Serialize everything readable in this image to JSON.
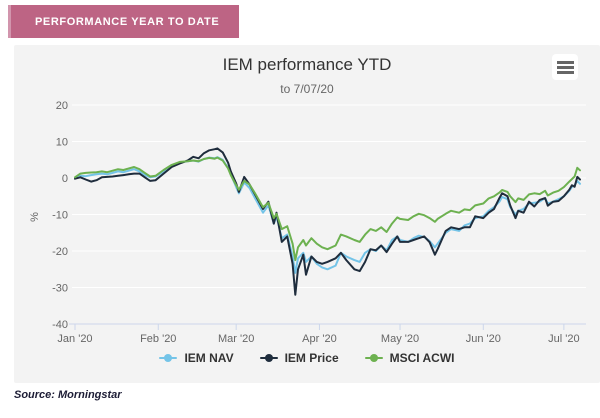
{
  "header": {
    "badge": "PERFORMANCE YEAR TO DATE"
  },
  "footer": {
    "source": "Source: Morningstar"
  },
  "colors": {
    "badge_bg": "#bd6484",
    "card_bg": "#f3f3f3",
    "grid": "#ffffff",
    "axis": "#ccd6eb",
    "tick_text": "#666666",
    "iem_nav": "#74c4e8",
    "iem_price": "#1f2d3d",
    "msci_acwi": "#6db150"
  },
  "export_menu": {
    "icon": "hamburger-icon"
  },
  "chart_data": {
    "type": "line",
    "title": "IEM performance YTD",
    "subtitle": "to 7/07/20",
    "ylabel": "%",
    "ylim": [
      -40,
      20
    ],
    "yticks": [
      20,
      10,
      0,
      -10,
      -20,
      -30,
      -40
    ],
    "grid": true,
    "legend_position": "bottom",
    "x_unit": "day-of-year 2020 (0 = Jan 1, 188 = Jul 7)",
    "xmax": 188,
    "xticks": [
      {
        "label": "Jan '20",
        "day": 0
      },
      {
        "label": "Feb '20",
        "day": 31
      },
      {
        "label": "Mar '20",
        "day": 60
      },
      {
        "label": "Apr '20",
        "day": 91
      },
      {
        "label": "May '20",
        "day": 121
      },
      {
        "label": "Jun '20",
        "day": 152
      },
      {
        "label": "Jul '20",
        "day": 182
      }
    ],
    "x_days": [
      0,
      2,
      4,
      6,
      8,
      10,
      12,
      14,
      16,
      18,
      20,
      22,
      24,
      26,
      28,
      30,
      33,
      36,
      39,
      42,
      44,
      46,
      48,
      50,
      52,
      53,
      55,
      57,
      58,
      60,
      61,
      63,
      65,
      67,
      70,
      72,
      74,
      75,
      77,
      79,
      81,
      82,
      83,
      85,
      86,
      88,
      90,
      92,
      94,
      97,
      99,
      101,
      104,
      106,
      108,
      110,
      112,
      114,
      116,
      118,
      120,
      121,
      124,
      126,
      128,
      130,
      132,
      134,
      135,
      138,
      140,
      143,
      145,
      147,
      149,
      152,
      154,
      156,
      158,
      159,
      161,
      162,
      164,
      165,
      167,
      169,
      171,
      173,
      175,
      176,
      178,
      180,
      182,
      184,
      185,
      186,
      187,
      188
    ],
    "series": [
      {
        "name": "IEM NAV",
        "color": "#74c4e8",
        "values": [
          0,
          0.6,
          0.5,
          0.8,
          1.0,
          1.2,
          1.0,
          1.4,
          1.8,
          1.6,
          2.0,
          2.4,
          1.8,
          0.8,
          0.2,
          0.4,
          1.8,
          3.2,
          4.2,
          4.6,
          4.8,
          4.5,
          5.2,
          5.6,
          5.4,
          5.7,
          5.0,
          2.8,
          1.0,
          -2.5,
          -4.2,
          -1.2,
          -2.8,
          -5.5,
          -9.5,
          -7.5,
          -12.5,
          -10.5,
          -16.5,
          -15.5,
          -21.5,
          -26.0,
          -22.0,
          -20.5,
          -23.0,
          -21.5,
          -23.5,
          -24.5,
          -25.0,
          -24.0,
          -20.5,
          -21.5,
          -22.5,
          -23.0,
          -20.5,
          -19.5,
          -20.0,
          -18.5,
          -19.8,
          -17.0,
          -16.0,
          -17.0,
          -17.5,
          -16.5,
          -15.8,
          -16.2,
          -17.3,
          -19.0,
          -18.0,
          -15.0,
          -14.0,
          -14.5,
          -13.0,
          -12.5,
          -11.0,
          -10.5,
          -9.0,
          -8.0,
          -6.5,
          -5.2,
          -5.8,
          -8.0,
          -10.0,
          -9.0,
          -8.5,
          -7.0,
          -6.8,
          -6.5,
          -5.5,
          -7.0,
          -6.5,
          -5.8,
          -5.0,
          -3.5,
          -2.5,
          -2.0,
          -0.8,
          -1.6
        ]
      },
      {
        "name": "IEM Price",
        "color": "#1f2d3d",
        "values": [
          -0.2,
          0.2,
          -0.4,
          -1.0,
          -0.6,
          0.2,
          0.3,
          0.4,
          0.6,
          0.8,
          1.0,
          1.2,
          1.2,
          0.2,
          -0.8,
          -0.6,
          1.2,
          3.0,
          4.0,
          4.8,
          5.8,
          5.4,
          6.8,
          7.6,
          7.9,
          8.1,
          7.0,
          4.2,
          1.8,
          -1.5,
          -3.8,
          0.3,
          -1.8,
          -4.5,
          -8.5,
          -6.5,
          -12.5,
          -9.5,
          -17.5,
          -16.0,
          -23.5,
          -32.0,
          -25.0,
          -21.0,
          -26.5,
          -21.5,
          -23.0,
          -23.5,
          -23.0,
          -22.0,
          -20.5,
          -22.5,
          -25.0,
          -25.5,
          -23.0,
          -19.5,
          -19.8,
          -18.5,
          -20.3,
          -18.0,
          -16.0,
          -17.5,
          -17.5,
          -17.0,
          -16.5,
          -16.0,
          -17.6,
          -21.0,
          -19.5,
          -14.5,
          -13.5,
          -14.0,
          -13.5,
          -13.5,
          -10.5,
          -11.0,
          -9.5,
          -8.5,
          -5.5,
          -4.2,
          -5.0,
          -7.5,
          -11.0,
          -9.0,
          -9.5,
          -6.5,
          -7.8,
          -6.0,
          -5.5,
          -7.6,
          -6.5,
          -6.3,
          -5.0,
          -3.2,
          -2.0,
          -2.4,
          0.3,
          -0.4
        ]
      },
      {
        "name": "MSCI ACWI",
        "color": "#6db150",
        "values": [
          0.2,
          1.2,
          1.4,
          1.5,
          1.6,
          1.8,
          1.6,
          2.0,
          2.4,
          2.2,
          2.6,
          3.0,
          2.4,
          1.4,
          0.4,
          0.6,
          2.2,
          3.6,
          4.4,
          4.6,
          4.8,
          4.6,
          5.2,
          5.5,
          5.3,
          5.6,
          4.8,
          2.6,
          0.8,
          -2.0,
          -3.2,
          -0.8,
          -1.8,
          -4.2,
          -8.0,
          -6.8,
          -11.0,
          -9.8,
          -14.0,
          -13.2,
          -18.0,
          -22.5,
          -19.0,
          -17.0,
          -18.5,
          -16.5,
          -18.0,
          -19.0,
          -19.5,
          -18.5,
          -15.5,
          -16.0,
          -17.0,
          -17.5,
          -15.5,
          -14.0,
          -14.5,
          -13.5,
          -14.8,
          -12.5,
          -10.8,
          -11.2,
          -11.5,
          -10.5,
          -9.8,
          -10.2,
          -11.0,
          -12.0,
          -11.2,
          -9.8,
          -9.0,
          -9.5,
          -8.6,
          -8.8,
          -7.5,
          -7.0,
          -5.6,
          -5.0,
          -4.0,
          -3.3,
          -3.8,
          -5.0,
          -6.6,
          -5.6,
          -6.0,
          -4.5,
          -4.2,
          -4.4,
          -3.5,
          -4.8,
          -4.0,
          -3.5,
          -2.5,
          -1.0,
          -0.3,
          0.4,
          2.8,
          2.1
        ]
      }
    ]
  }
}
